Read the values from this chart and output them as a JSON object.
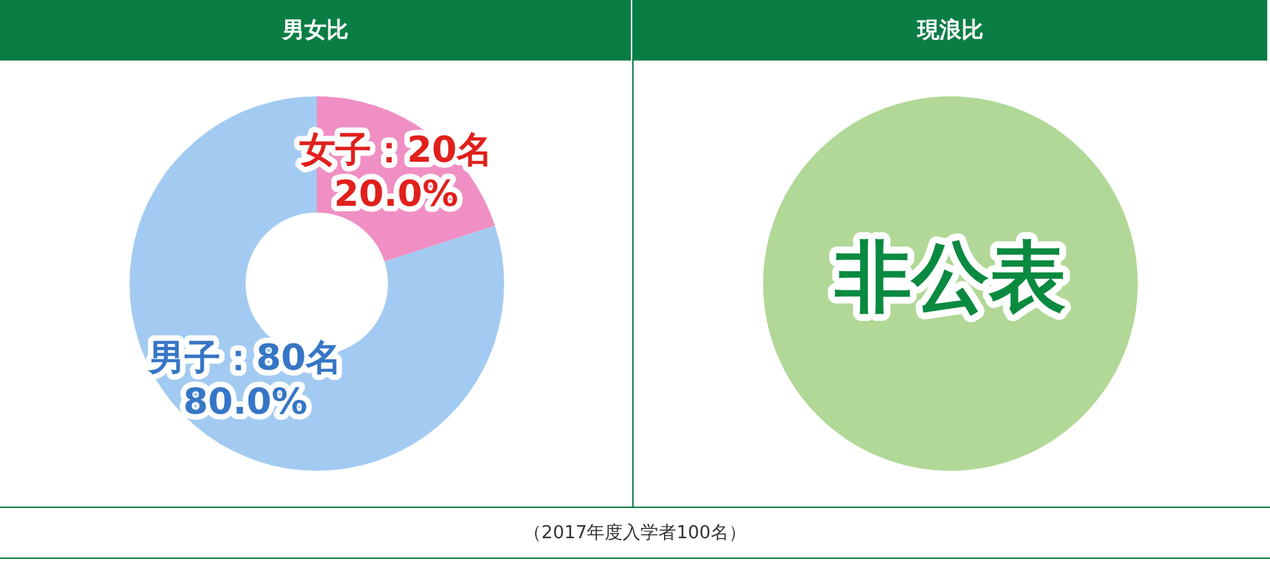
{
  "chart_data": [
    {
      "type": "donut",
      "title": "男女比",
      "categories": [
        "女子",
        "男子"
      ],
      "values": [
        20,
        80
      ],
      "colors": [
        "#f08fc3",
        "#a3cbf2"
      ],
      "value_labels": [
        "：20名\n20.0%",
        "：80名\n80.0%"
      ],
      "legend": false,
      "annotations": [
        "（2017年度入学者100名）"
      ]
    },
    {
      "type": "pie",
      "title": "現浪比",
      "categories": [
        null
      ],
      "values": [
        100
      ],
      "colors": [
        "#b1d896"
      ],
      "legend": false,
      "annotations": [
        "非公表"
      ]
    }
  ]
}
